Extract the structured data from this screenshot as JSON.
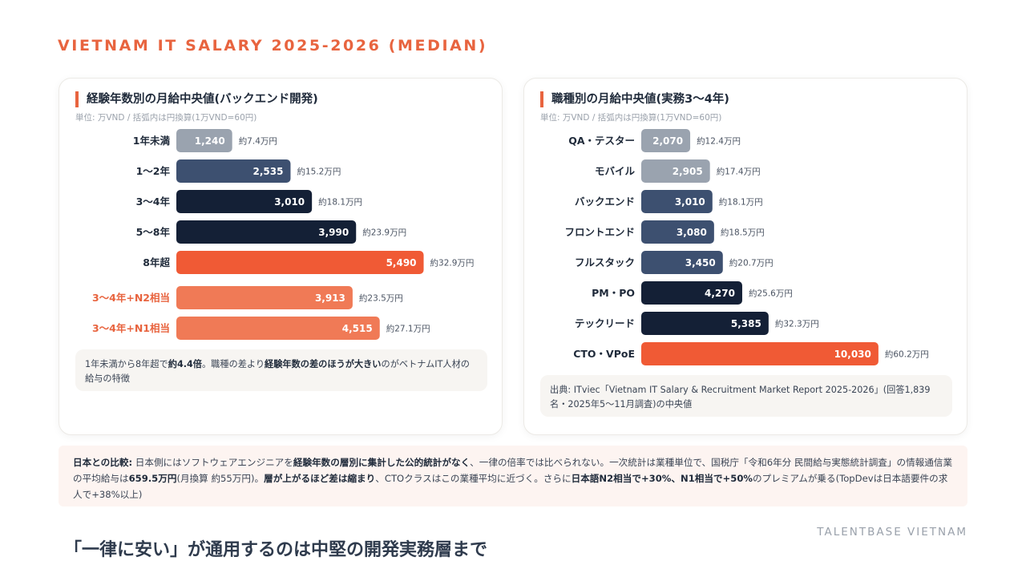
{
  "page": {
    "title": "VIETNAM IT SALARY 2025-2026 (MEDIAN)",
    "headline": "「一律に安い」が通用するのは中堅の開発実務層まで",
    "brand": "TALENTBASE VIETNAM"
  },
  "left_card": {
    "title": "経験年数別の月給中央値(バックエンド開発)",
    "unit": "単位: 万VND / 括弧内は円換算(1万VND=60円)",
    "note": {
      "t1": "1年未満から8年超で",
      "b1": "約4.4倍",
      "t2": "。職種の差より",
      "b2": "経験年数の差のほうが大きい",
      "t3": "のがベトナムIT人材の給与の特徴"
    }
  },
  "right_card": {
    "title": "職種別の月給中央値(実務3〜4年)",
    "unit": "単位: 万VND / 括弧内は円換算(1万VND=60円)",
    "source": "出典: ITviec「Vietnam IT Salary & Recruitment Market Report 2025-2026」(回答1,839名・2025年5〜11月調査)の中央値"
  },
  "compare": {
    "label": "日本との比較:",
    "t1": " 日本側にはソフトウェアエンジニアを",
    "b1": "経験年数の層別に集計した公的統計がなく",
    "t2": "、一律の倍率では比べられない。一次統計は業種単位で、国税庁「令和6年分 民間給与実態統計調査」の情報通信業の平均給与は",
    "b2": "659.5万円",
    "t3": "(月換算 約55万円)。",
    "b3": "層が上がるほど差は縮まり",
    "t4": "、CTOクラスはこの業種平均に近づく。さらに",
    "b4": "日本語N2相当で+30%、N1相当で+50%",
    "t5": "のプレミアムが乗る(TopDevは日本語要件の求人で+38%以上)"
  },
  "colors": {
    "accent": "#e8643f",
    "gray": "#9aa3af",
    "slate": "#3d5070",
    "navy": "#142036",
    "orange": "#f05a35",
    "light_orange": "#f07a56"
  },
  "chart_data": [
    {
      "type": "bar",
      "orientation": "horizontal",
      "title": "経験年数別の月給中央値(バックエンド開発)",
      "unit": "万VND",
      "categories": [
        "1年未満",
        "1〜2年",
        "3〜4年",
        "5〜8年",
        "8年超",
        "3〜4年+N2相当",
        "3〜4年+N1相当"
      ],
      "values": [
        1240,
        2535,
        3010,
        3990,
        5490,
        3913,
        4515
      ],
      "value_labels": [
        "1,240",
        "2,535",
        "3,010",
        "3,990",
        "5,490",
        "3,913",
        "4,515"
      ],
      "yen_labels": [
        "約7.4万円",
        "約15.2万円",
        "約18.1万円",
        "約23.9万円",
        "約32.9万円",
        "約23.5万円",
        "約27.1万円"
      ],
      "bar_colors": [
        "gray",
        "slate",
        "navy",
        "navy",
        "orange",
        "light_orange",
        "light_orange"
      ],
      "highlight_labels": [
        false,
        false,
        false,
        false,
        false,
        true,
        true
      ]
    },
    {
      "type": "bar",
      "orientation": "horizontal",
      "title": "職種別の月給中央値(実務3〜4年)",
      "unit": "万VND",
      "categories": [
        "QA・テスター",
        "モバイル",
        "バックエンド",
        "フロントエンド",
        "フルスタック",
        "PM・PO",
        "テックリード",
        "CTO・VPoE"
      ],
      "values": [
        2070,
        2905,
        3010,
        3080,
        3450,
        4270,
        5385,
        10030
      ],
      "value_labels": [
        "2,070",
        "2,905",
        "3,010",
        "3,080",
        "3,450",
        "4,270",
        "5,385",
        "10,030"
      ],
      "yen_labels": [
        "約12.4万円",
        "約17.4万円",
        "約18.1万円",
        "約18.5万円",
        "約20.7万円",
        "約25.6万円",
        "約32.3万円",
        "約60.2万円"
      ],
      "bar_colors": [
        "gray",
        "gray",
        "slate",
        "slate",
        "slate",
        "navy",
        "navy",
        "orange"
      ],
      "highlight_labels": [
        false,
        false,
        false,
        false,
        false,
        false,
        false,
        false
      ]
    }
  ]
}
